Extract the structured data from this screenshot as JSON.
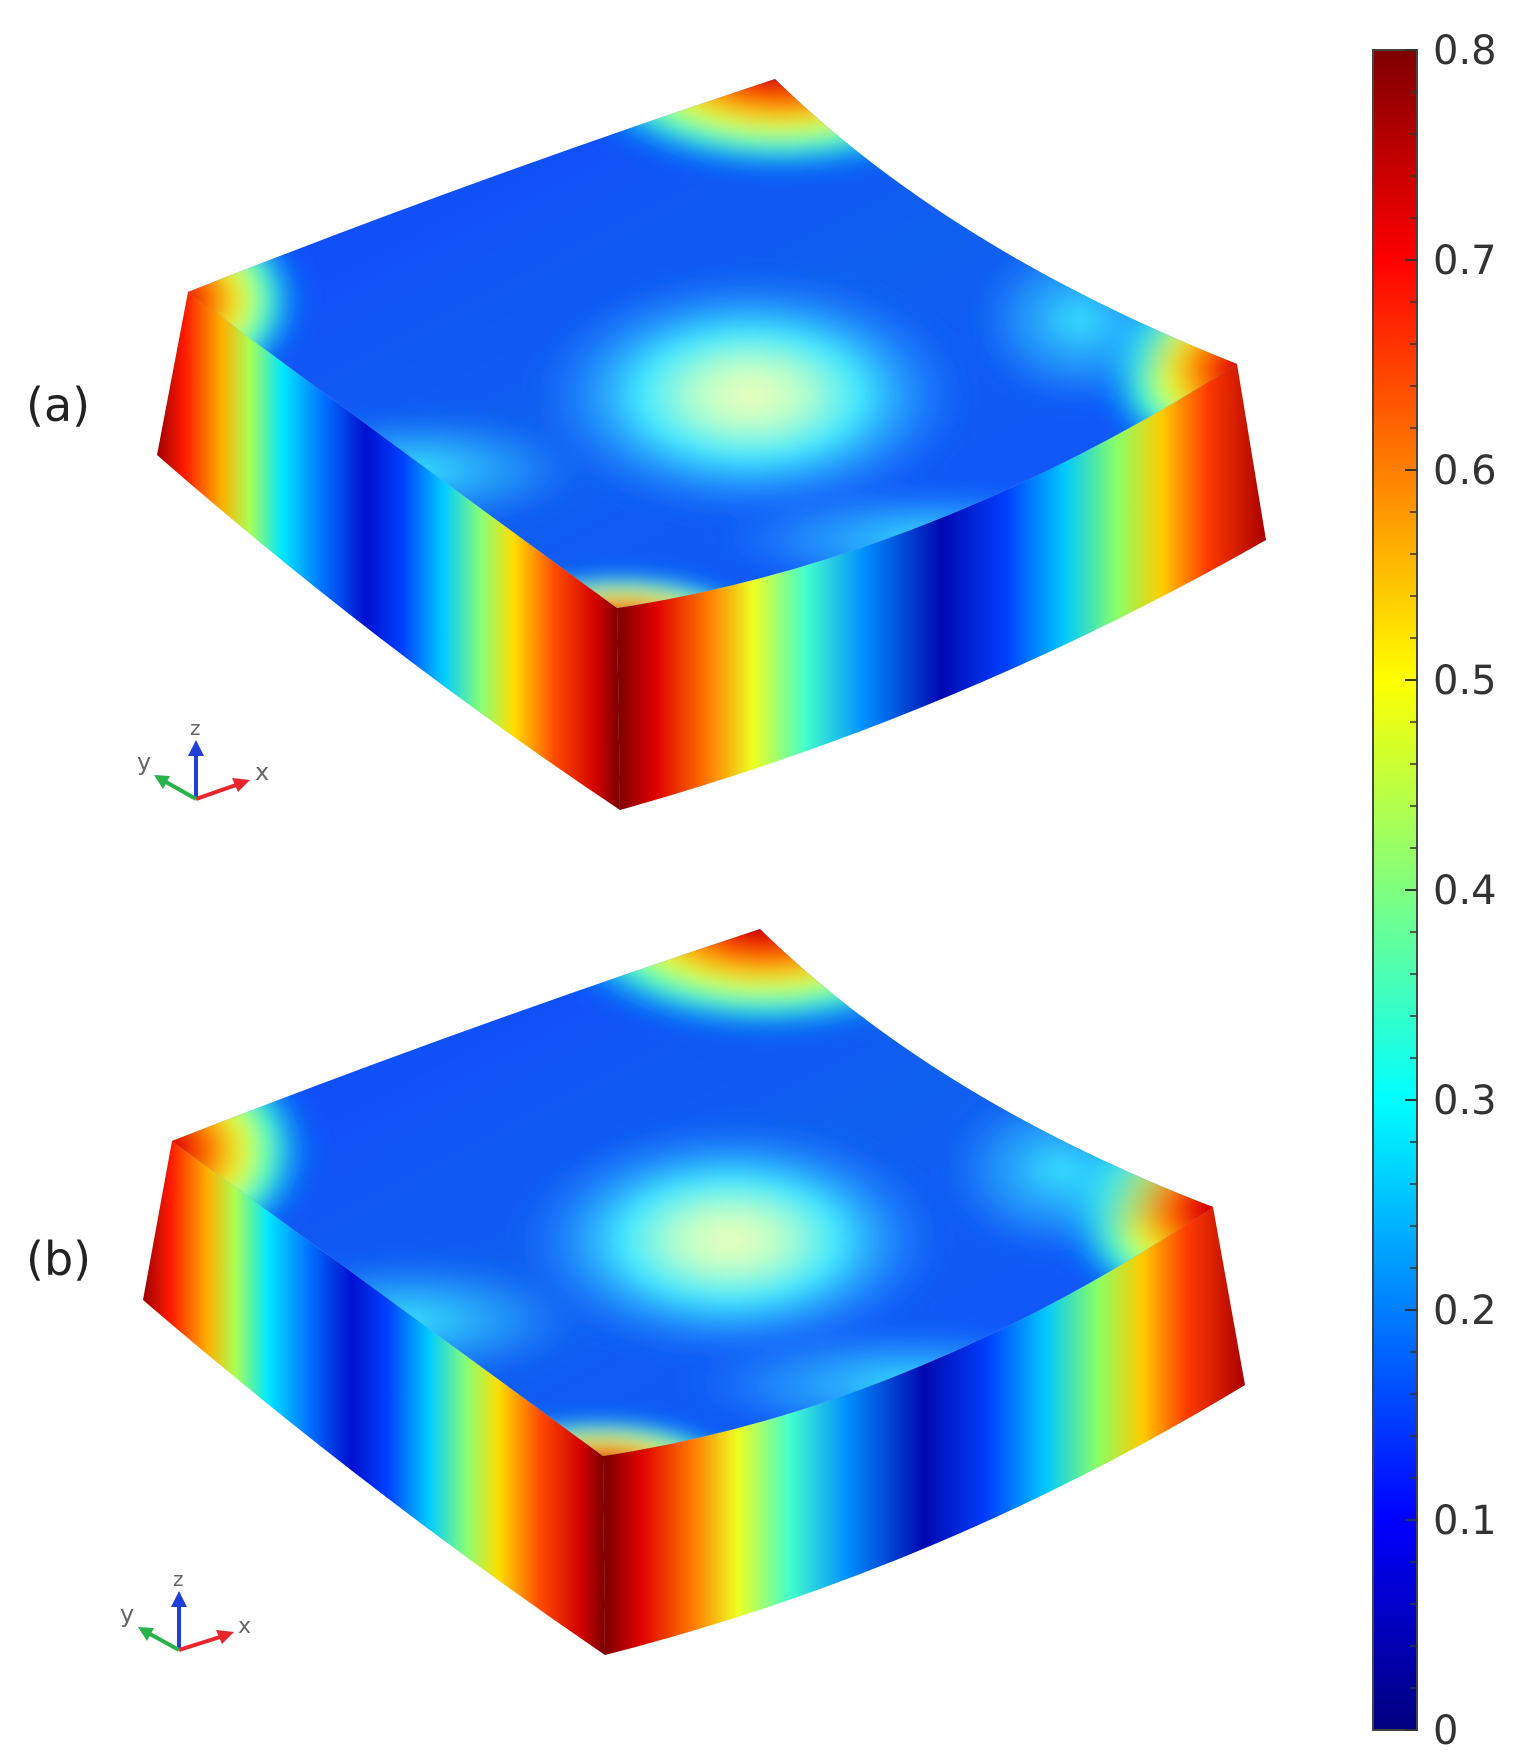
{
  "panels": [
    {
      "label": "(a)",
      "axes": {
        "x": "x",
        "y": "y",
        "z": "z"
      }
    },
    {
      "label": "(b)",
      "axes": {
        "x": "x",
        "y": "y",
        "z": "z"
      }
    }
  ],
  "colorbar": {
    "min": 0,
    "max": 0.8,
    "ticks": [
      "0",
      "0.1",
      "0.2",
      "0.3",
      "0.4",
      "0.5",
      "0.6",
      "0.7",
      "0.8"
    ],
    "colormap": "jet",
    "colors": [
      "#00007f",
      "#0000ff",
      "#007fff",
      "#00ffff",
      "#7fff7f",
      "#ffff00",
      "#ff7f00",
      "#ff0000",
      "#7f0000"
    ]
  },
  "axis_colors": {
    "x": "#e8262b",
    "y": "#27b34a",
    "z": "#1f3fd8"
  }
}
